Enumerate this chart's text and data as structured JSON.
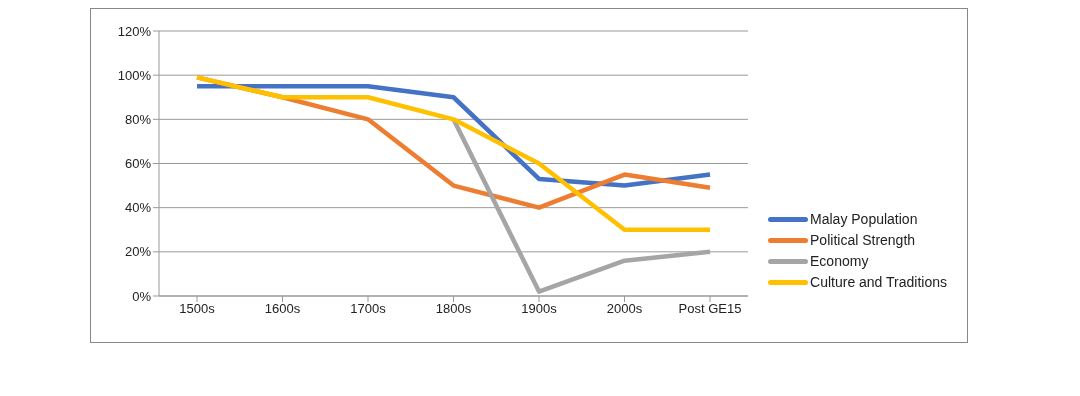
{
  "chart_data": {
    "type": "line",
    "categories": [
      "1500s",
      "1600s",
      "1700s",
      "1800s",
      "1900s",
      "2000s",
      "Post GE15"
    ],
    "series": [
      {
        "name": "Malay Population",
        "color": "#4472c4",
        "values": [
          95,
          95,
          95,
          90,
          53,
          50,
          55
        ]
      },
      {
        "name": "Political Strength",
        "color": "#ed7d31",
        "values": [
          99,
          90,
          80,
          50,
          40,
          55,
          49
        ]
      },
      {
        "name": "Economy",
        "color": "#a5a5a5",
        "values": [
          null,
          null,
          null,
          80,
          2,
          16,
          20
        ]
      },
      {
        "name": "Culture and Traditions",
        "color": "#ffc000",
        "values": [
          99,
          90,
          90,
          80,
          60,
          30,
          30
        ]
      }
    ],
    "ylim": [
      0,
      120
    ],
    "yticks": [
      {
        "value": 0,
        "label": "0%"
      },
      {
        "value": 20,
        "label": "20%"
      },
      {
        "value": 40,
        "label": "40%"
      },
      {
        "value": 60,
        "label": "60%"
      },
      {
        "value": 80,
        "label": "80%"
      },
      {
        "value": 100,
        "label": "100%"
      },
      {
        "value": 120,
        "label": "120%"
      }
    ],
    "grid": "y",
    "legend": "right",
    "marker": "none",
    "line_style": "solid"
  }
}
